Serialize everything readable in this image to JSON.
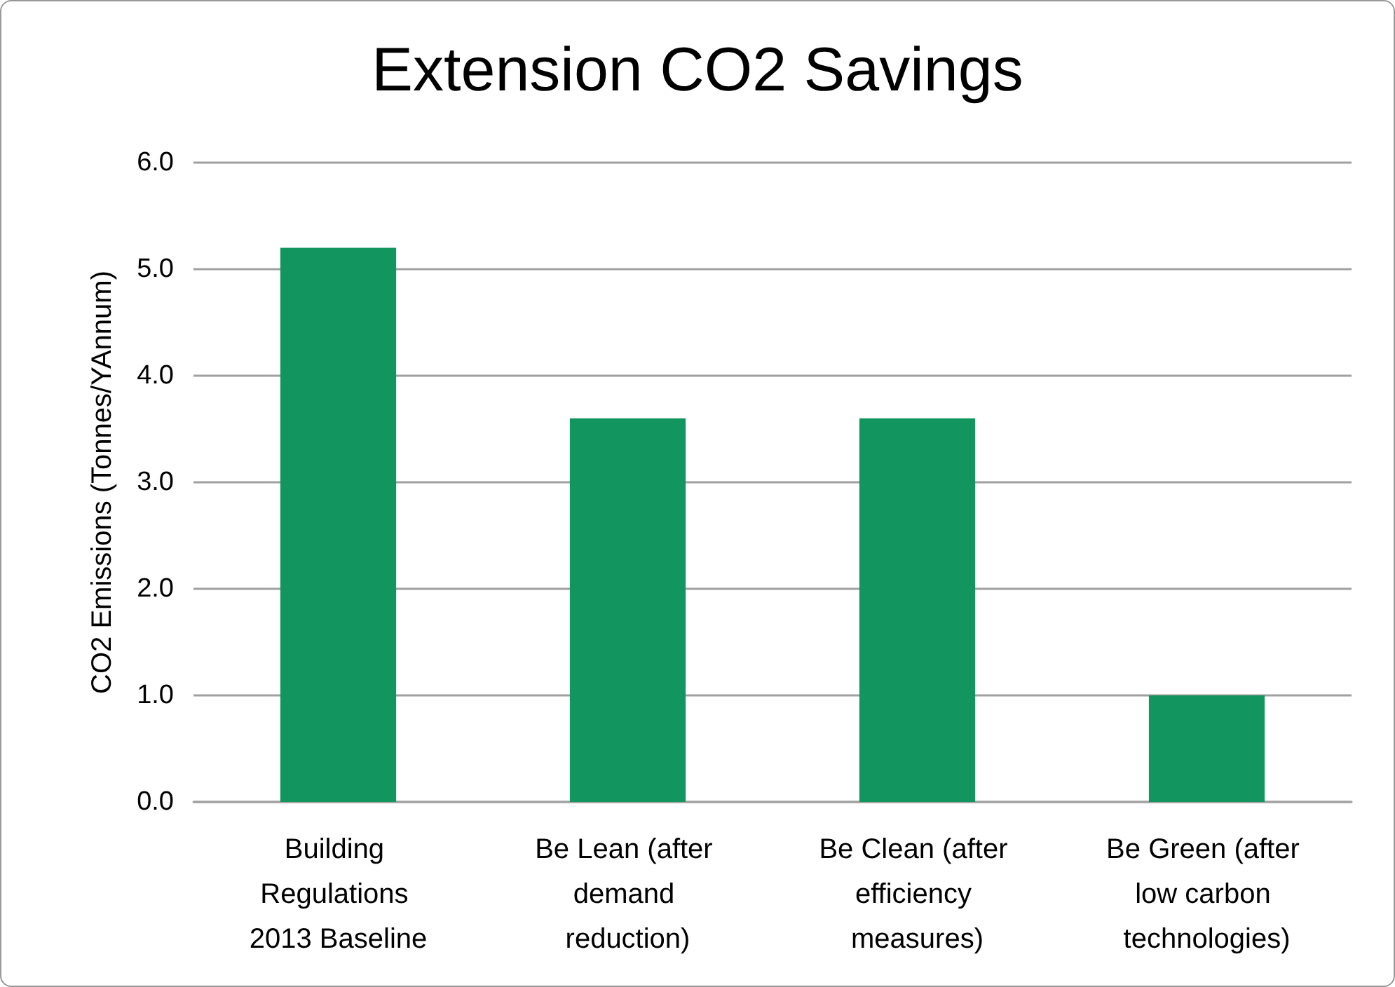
{
  "chart_data": {
    "type": "bar",
    "title": "Extension CO2 Savings",
    "ylabel": "CO2 Emissions (Tonnes/YAnnum)",
    "categories": [
      "Building Regulations 2013 Baseline",
      "Be Lean (after demand reduction)",
      "Be Clean (after efficiency measures)",
      "Be Green (after low carbon technologies)"
    ],
    "values": [
      5.2,
      3.6,
      3.6,
      1.0
    ],
    "color": "#13955f",
    "ylim": [
      0,
      6
    ],
    "yticks": [
      {
        "value": 0,
        "label": "0.0"
      },
      {
        "value": 1,
        "label": "1.0"
      },
      {
        "value": 2,
        "label": "2.0"
      },
      {
        "value": 3,
        "label": "3.0"
      },
      {
        "value": 4,
        "label": "4.0"
      },
      {
        "value": 5,
        "label": "5.0"
      },
      {
        "value": 6,
        "label": "6.0"
      }
    ],
    "grid": "y"
  }
}
